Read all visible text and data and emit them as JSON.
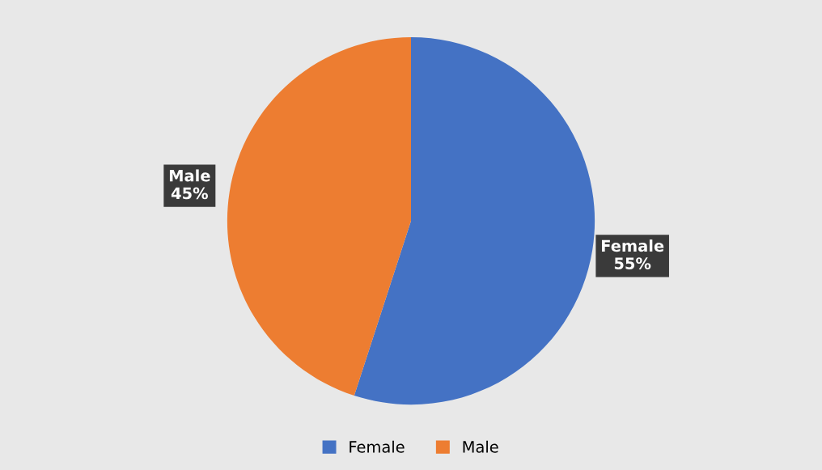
{
  "chart_data": {
    "type": "pie",
    "categories": [
      "Female",
      "Male"
    ],
    "values": [
      55,
      45
    ],
    "value_labels": [
      "55%",
      "45%"
    ],
    "colors": [
      "#4472c4",
      "#ed7d31"
    ],
    "legend": "bottom"
  }
}
